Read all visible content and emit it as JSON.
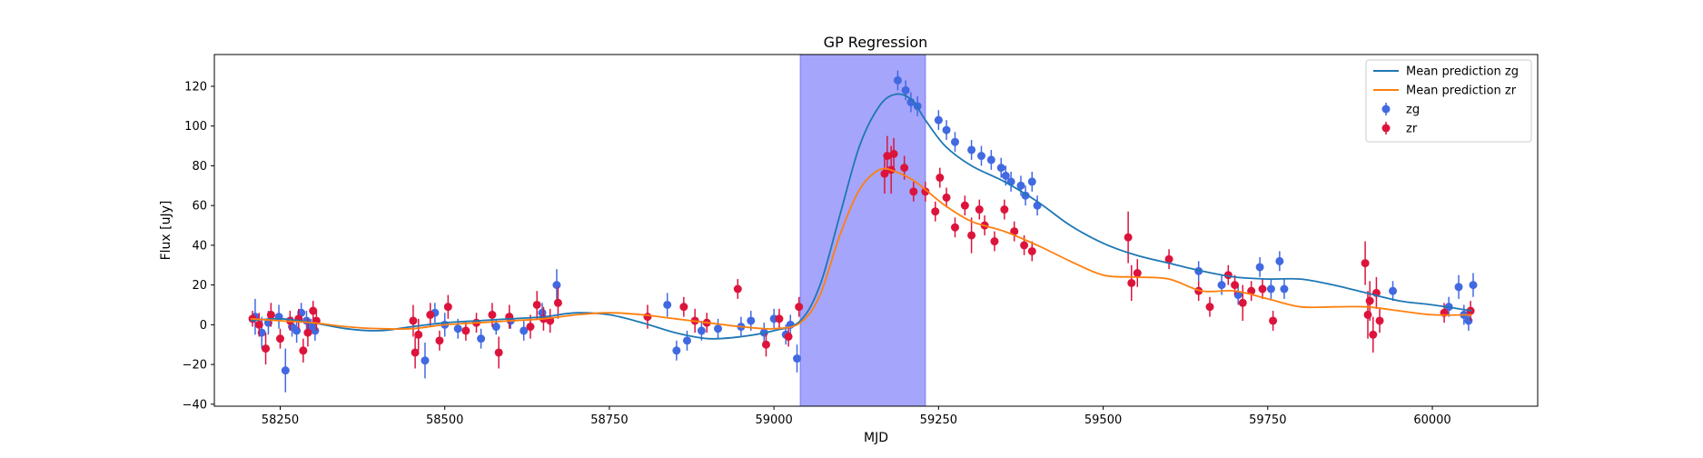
{
  "chart_data": {
    "type": "scatter",
    "title": "GP Regression",
    "xlabel": "MJD",
    "ylabel": "Flux [uJy]",
    "xlim": [
      58150,
      60160
    ],
    "ylim": [
      -41,
      136
    ],
    "xticks": [
      58250,
      58500,
      58750,
      59000,
      59250,
      59500,
      59750,
      60000
    ],
    "yticks": [
      -40,
      -20,
      0,
      20,
      40,
      60,
      80,
      100,
      120
    ],
    "shaded_region": {
      "x": [
        59040,
        59230
      ],
      "color": "#a5a5fb"
    },
    "legend": {
      "placement": "upper right",
      "entries": [
        {
          "label": "Mean prediction zg",
          "kind": "line",
          "color": "#1f77b4"
        },
        {
          "label": "Mean prediction zr",
          "kind": "line",
          "color": "#ff7f0e"
        },
        {
          "label": "zg",
          "kind": "errorbar",
          "color": "#4169e1"
        },
        {
          "label": "zr",
          "kind": "errorbar",
          "color": "#dc143c"
        }
      ]
    },
    "series": [
      {
        "name": "Mean prediction zg",
        "kind": "line",
        "color": "#1f77b4",
        "x": [
          58205,
          58250,
          58300,
          58350,
          58400,
          58450,
          58500,
          58550,
          58600,
          58650,
          58700,
          58750,
          58800,
          58850,
          58900,
          58950,
          59000,
          59040,
          59070,
          59100,
          59130,
          59160,
          59185,
          59210,
          59230,
          59260,
          59300,
          59350,
          59400,
          59450,
          59500,
          59550,
          59600,
          59650,
          59700,
          59750,
          59800,
          59850,
          59900,
          59950,
          60000,
          60060
        ],
        "y": [
          2,
          3,
          1,
          -2,
          -3,
          -1,
          1,
          2,
          3,
          4,
          6,
          5,
          1,
          -4,
          -7,
          -6,
          -3,
          2,
          20,
          55,
          90,
          110,
          116,
          113,
          103,
          90,
          80,
          72,
          62,
          50,
          41,
          35,
          31,
          27,
          24,
          23,
          23,
          20,
          16,
          12,
          10,
          7
        ]
      },
      {
        "name": "Mean prediction zr",
        "kind": "line",
        "color": "#ff7f0e",
        "x": [
          58205,
          58250,
          58300,
          58350,
          58400,
          58450,
          58500,
          58550,
          58600,
          58650,
          58700,
          58750,
          58800,
          58850,
          58900,
          58950,
          59000,
          59040,
          59070,
          59100,
          59130,
          59160,
          59185,
          59210,
          59230,
          59260,
          59300,
          59350,
          59400,
          59450,
          59500,
          59550,
          59600,
          59650,
          59700,
          59750,
          59800,
          59850,
          59900,
          59950,
          60000,
          60060
        ],
        "y": [
          3,
          2,
          1,
          -1,
          -2,
          -2,
          0,
          1,
          2,
          3,
          5,
          6,
          5,
          3,
          1,
          -1,
          -2,
          1,
          15,
          45,
          68,
          78,
          77,
          73,
          68,
          60,
          52,
          47,
          40,
          32,
          25,
          24,
          23,
          17,
          17,
          13,
          9,
          9,
          9,
          7,
          5,
          5
        ]
      },
      {
        "name": "zg",
        "kind": "errorbar",
        "color": "#4169e1",
        "points": [
          [
            58212,
            4,
            9
          ],
          [
            58222,
            -4,
            8
          ],
          [
            58232,
            1,
            6
          ],
          [
            58248,
            4,
            6
          ],
          [
            58258,
            -23,
            11
          ],
          [
            58268,
            -1,
            5
          ],
          [
            58275,
            -3,
            6
          ],
          [
            58282,
            6,
            5
          ],
          [
            58290,
            2,
            5
          ],
          [
            58297,
            -1,
            4
          ],
          [
            58303,
            -3,
            5
          ],
          [
            58470,
            -18,
            9
          ],
          [
            58485,
            6,
            5
          ],
          [
            58500,
            0,
            6
          ],
          [
            58520,
            -2,
            5
          ],
          [
            58555,
            -7,
            5
          ],
          [
            58578,
            -1,
            4
          ],
          [
            58600,
            2,
            4
          ],
          [
            58620,
            -3,
            5
          ],
          [
            58648,
            6,
            5
          ],
          [
            58670,
            20,
            8
          ],
          [
            58838,
            10,
            6
          ],
          [
            58852,
            -13,
            5
          ],
          [
            58868,
            -8,
            5
          ],
          [
            58890,
            -3,
            5
          ],
          [
            58915,
            -2,
            5
          ],
          [
            58950,
            -1,
            5
          ],
          [
            58965,
            2,
            5
          ],
          [
            58985,
            -4,
            5
          ],
          [
            59000,
            3,
            5
          ],
          [
            59018,
            -5,
            5
          ],
          [
            59025,
            0,
            5
          ],
          [
            59035,
            -17,
            7
          ],
          [
            59188,
            123,
            5
          ],
          [
            59200,
            118,
            5
          ],
          [
            59208,
            112,
            5
          ],
          [
            59218,
            110,
            5
          ],
          [
            59250,
            103,
            5
          ],
          [
            59262,
            98,
            5
          ],
          [
            59275,
            92,
            5
          ],
          [
            59300,
            88,
            5
          ],
          [
            59315,
            85,
            5
          ],
          [
            59330,
            83,
            5
          ],
          [
            59345,
            79,
            5
          ],
          [
            59352,
            75,
            5
          ],
          [
            59360,
            72,
            5
          ],
          [
            59375,
            70,
            5
          ],
          [
            59382,
            65,
            5
          ],
          [
            59392,
            72,
            5
          ],
          [
            59400,
            60,
            5
          ],
          [
            59645,
            27,
            5
          ],
          [
            59680,
            20,
            5
          ],
          [
            59705,
            15,
            5
          ],
          [
            59738,
            29,
            5
          ],
          [
            59755,
            18,
            5
          ],
          [
            59768,
            32,
            5
          ],
          [
            59775,
            18,
            5
          ],
          [
            59940,
            17,
            5
          ],
          [
            60025,
            9,
            5
          ],
          [
            60040,
            19,
            6
          ],
          [
            60048,
            5,
            5
          ],
          [
            60055,
            2,
            5
          ],
          [
            60062,
            20,
            6
          ]
        ]
      },
      {
        "name": "zr",
        "kind": "errorbar",
        "color": "#dc143c",
        "points": [
          [
            58208,
            3,
            4
          ],
          [
            58218,
            0,
            6
          ],
          [
            58228,
            -12,
            8
          ],
          [
            58236,
            5,
            6
          ],
          [
            58250,
            -7,
            5
          ],
          [
            58265,
            2,
            5
          ],
          [
            58278,
            3,
            5
          ],
          [
            58285,
            -13,
            6
          ],
          [
            58292,
            -4,
            7
          ],
          [
            58300,
            7,
            5
          ],
          [
            58305,
            2,
            5
          ],
          [
            58452,
            2,
            8
          ],
          [
            58455,
            -14,
            8
          ],
          [
            58460,
            -5,
            8
          ],
          [
            58478,
            5,
            6
          ],
          [
            58492,
            -8,
            5
          ],
          [
            58505,
            9,
            6
          ],
          [
            58532,
            -3,
            5
          ],
          [
            58548,
            1,
            5
          ],
          [
            58572,
            5,
            6
          ],
          [
            58582,
            -14,
            8
          ],
          [
            58598,
            4,
            6
          ],
          [
            58630,
            -1,
            6
          ],
          [
            58640,
            10,
            7
          ],
          [
            58650,
            3,
            6
          ],
          [
            58660,
            2,
            6
          ],
          [
            58672,
            11,
            8
          ],
          [
            58808,
            4,
            6
          ],
          [
            58863,
            9,
            5
          ],
          [
            58880,
            2,
            6
          ],
          [
            58898,
            1,
            5
          ],
          [
            58945,
            18,
            5
          ],
          [
            58988,
            -10,
            6
          ],
          [
            59008,
            3,
            5
          ],
          [
            59022,
            -6,
            5
          ],
          [
            59038,
            9,
            5
          ],
          [
            59168,
            76,
            10
          ],
          [
            59172,
            85,
            10
          ],
          [
            59178,
            78,
            12
          ],
          [
            59182,
            86,
            8
          ],
          [
            59198,
            79,
            6
          ],
          [
            59212,
            67,
            5
          ],
          [
            59230,
            67,
            5
          ],
          [
            59245,
            57,
            5
          ],
          [
            59252,
            74,
            5
          ],
          [
            59262,
            64,
            5
          ],
          [
            59275,
            49,
            5
          ],
          [
            59290,
            60,
            5
          ],
          [
            59300,
            45,
            9
          ],
          [
            59312,
            58,
            5
          ],
          [
            59320,
            50,
            5
          ],
          [
            59335,
            42,
            5
          ],
          [
            59350,
            58,
            5
          ],
          [
            59365,
            47,
            5
          ],
          [
            59380,
            40,
            5
          ],
          [
            59392,
            37,
            5
          ],
          [
            59538,
            44,
            13
          ],
          [
            59543,
            21,
            9
          ],
          [
            59552,
            26,
            7
          ],
          [
            59600,
            33,
            5
          ],
          [
            59645,
            17,
            5
          ],
          [
            59662,
            9,
            5
          ],
          [
            59690,
            25,
            5
          ],
          [
            59700,
            20,
            5
          ],
          [
            59712,
            11,
            9
          ],
          [
            59725,
            17,
            5
          ],
          [
            59742,
            18,
            5
          ],
          [
            59758,
            2,
            5
          ],
          [
            59898,
            31,
            11
          ],
          [
            59902,
            5,
            12
          ],
          [
            59905,
            12,
            10
          ],
          [
            59910,
            -5,
            9
          ],
          [
            59915,
            16,
            8
          ],
          [
            59920,
            2,
            6
          ],
          [
            60018,
            6,
            5
          ],
          [
            60058,
            7,
            5
          ]
        ]
      }
    ]
  }
}
